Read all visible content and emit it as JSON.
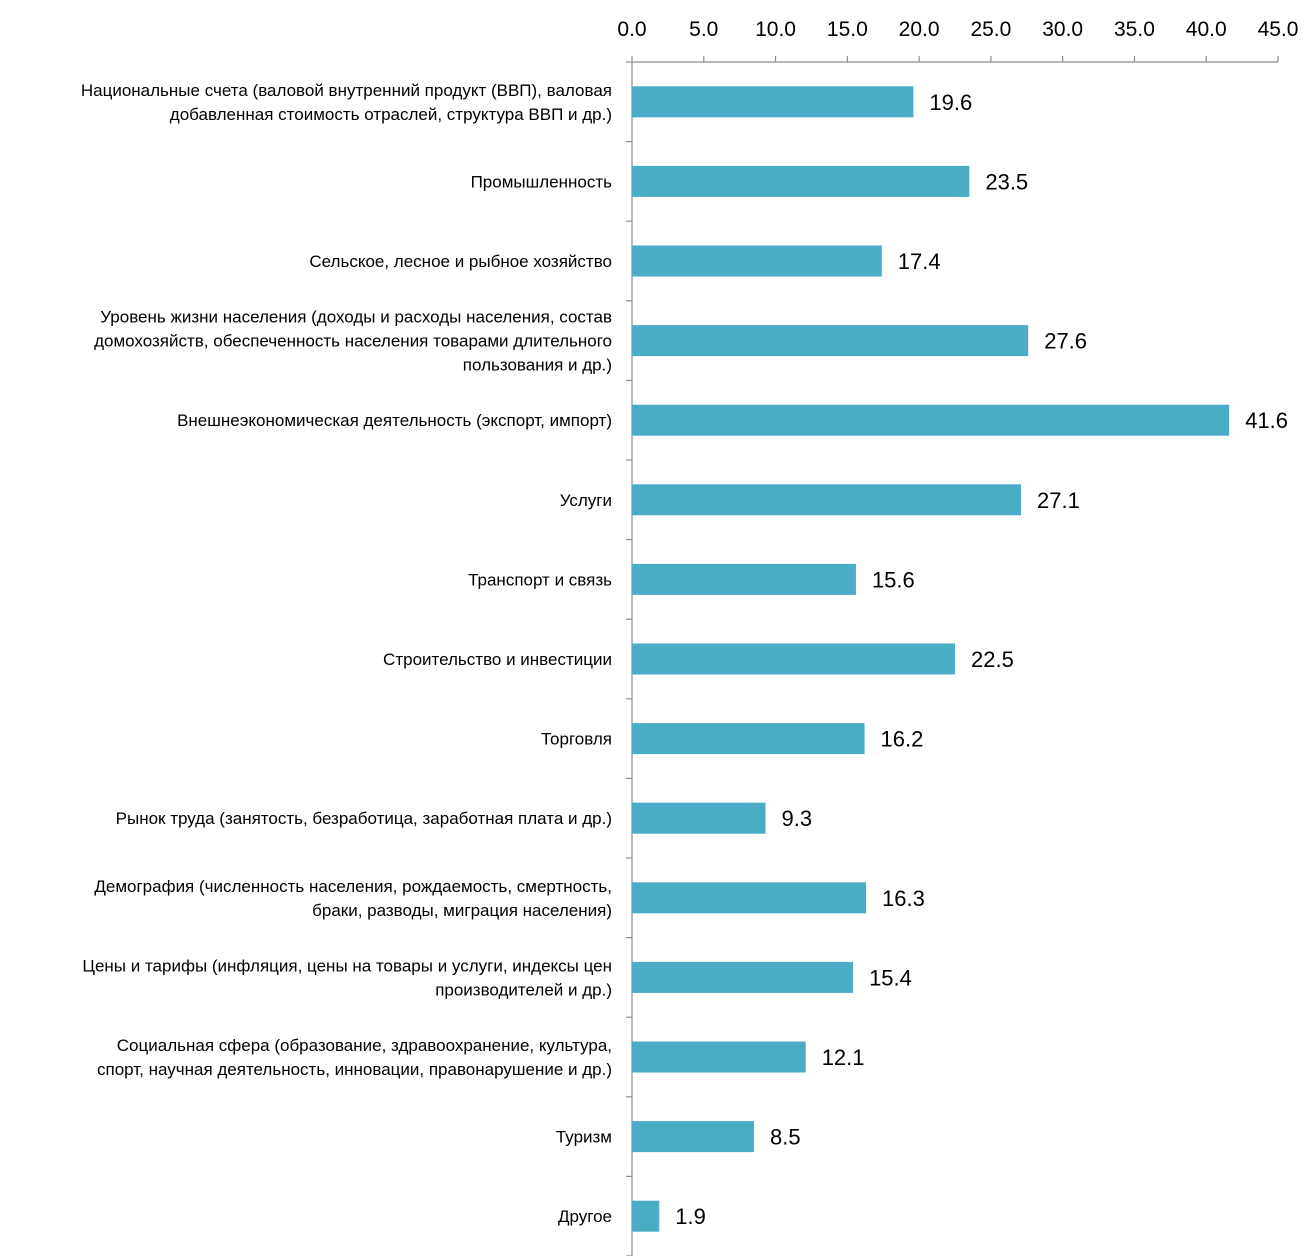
{
  "chart_data": {
    "type": "bar",
    "orientation": "horizontal",
    "title": "",
    "xlabel": "",
    "ylabel": "",
    "xlim": [
      0,
      45
    ],
    "tick_step": 5,
    "tick_labels": [
      "0.0",
      "5.0",
      "10.0",
      "15.0",
      "20.0",
      "25.0",
      "30.0",
      "35.0",
      "40.0",
      "45.0"
    ],
    "x_axis_position": "top",
    "grid": false,
    "legend": "none",
    "bar_color": "#4bacc6",
    "categories": [
      [
        "Национальные счета (валовой внутренний продукт (ВВП), валовая",
        "добавленная стоимость отраслей, структура ВВП и др.)"
      ],
      [
        "Промышленность"
      ],
      [
        "Сельское, лесное и рыбное хозяйство"
      ],
      [
        "Уровень жизни населения (доходы и расходы населения, состав",
        "домохозяйств, обеспеченность населения товарами длительного",
        "пользования и др.)"
      ],
      [
        "Внешнеэкономическая деятельность (экспорт, импорт)"
      ],
      [
        "Услуги"
      ],
      [
        "Транспорт и связь"
      ],
      [
        "Строительство и инвестиции"
      ],
      [
        "Торговля"
      ],
      [
        "Рынок труда (занятость, безработица, заработная плата и др.)"
      ],
      [
        "Демография (численность населения, рождаемость, смертность,",
        "браки, разводы, миграция населения)"
      ],
      [
        "Цены и тарифы (инфляция, цены на товары и услуги, индексы цен",
        "производителей и др.)"
      ],
      [
        "Социальная сфера (образование, здравоохранение, культура,",
        "спорт, научная деятельность, инновации, правонарушение и др.)"
      ],
      [
        "Туризм"
      ],
      [
        "Другое"
      ]
    ],
    "values": [
      19.6,
      23.5,
      17.4,
      27.6,
      41.6,
      27.1,
      15.6,
      22.5,
      16.2,
      9.3,
      16.3,
      15.4,
      12.1,
      8.5,
      1.9
    ],
    "value_labels": [
      "19.6",
      "23.5",
      "17.4",
      "27.6",
      "41.6",
      "27.1",
      "15.6",
      "22.5",
      "16.2",
      "9.3",
      "16.3",
      "15.4",
      "12.1",
      "8.5",
      "1.9"
    ]
  }
}
